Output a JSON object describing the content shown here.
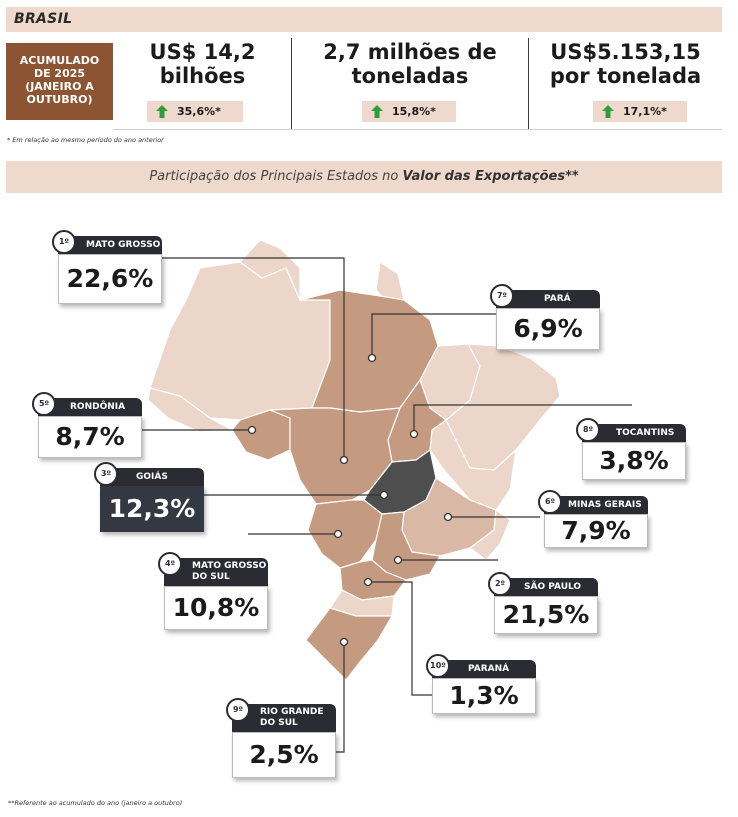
{
  "header": {
    "title": "BRASIL"
  },
  "period_label": "ACUMULADO\nDE 2025\n(JANEIRO A\nOUTUBRO)",
  "metrics": [
    {
      "value": "US$ 14,2\nbilhões",
      "change": "35,6%*"
    },
    {
      "value": "2,7 milhões de\ntoneladas",
      "change": "15,8%*"
    },
    {
      "value": "US$5.153,15\npor tonelada",
      "change": "17,1%*"
    }
  ],
  "footnote_1": "* Em relação ao mesmo período do ano anterior",
  "section_title": {
    "prefix": "Participação dos Principais Estados no ",
    "bold": "Valor das Exportações**"
  },
  "states": [
    {
      "rank": "1º",
      "name": "MATO GROSSO",
      "share": "22,6%",
      "share_pct": 22.6
    },
    {
      "rank": "2º",
      "name": "SÃO PAULO",
      "share": "21,5%",
      "share_pct": 21.5
    },
    {
      "rank": "3º",
      "name": "GOIÁS",
      "share": "12,3%",
      "share_pct": 12.3,
      "highlight": true
    },
    {
      "rank": "4º",
      "name": "MATO GROSSO\nDO SUL",
      "share": "10,8%",
      "share_pct": 10.8
    },
    {
      "rank": "5º",
      "name": "RONDÔNIA",
      "share": "8,7%",
      "share_pct": 8.7
    },
    {
      "rank": "6º",
      "name": "MINAS GERAIS",
      "share": "7,9%",
      "share_pct": 7.9
    },
    {
      "rank": "7º",
      "name": "PARÁ",
      "share": "6,9%",
      "share_pct": 6.9
    },
    {
      "rank": "8º",
      "name": "TOCANTINS",
      "share": "3,8%",
      "share_pct": 3.8
    },
    {
      "rank": "9º",
      "name": "RIO GRANDE\nDO SUL",
      "share": "2,5%",
      "share_pct": 2.5
    },
    {
      "rank": "10º",
      "name": "PARANÁ",
      "share": "1,3%",
      "share_pct": 1.3
    }
  ],
  "footnote_2": "**Referente ao acumulado do ano (janeiro a outubro)",
  "colors": {
    "band": "#efd9cd",
    "period_box": "#8c5432",
    "map_light": "#ecd6ca",
    "map_mid": "#d9b9a6",
    "map_dark": "#c49a80",
    "highlight_state": "#4e4e4e",
    "label_tab": "#2b2b33",
    "arrow_up": "#2f9e3a"
  }
}
